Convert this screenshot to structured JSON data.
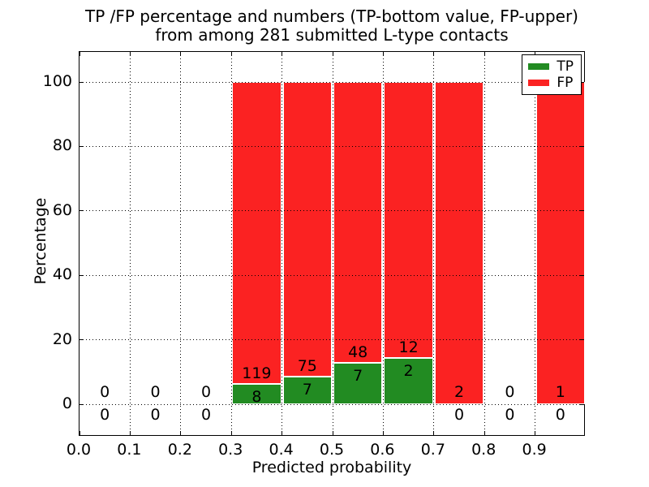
{
  "chart_data": {
    "type": "bar",
    "stacked": true,
    "normalized_total_pct": 100,
    "title_line1": "TP /FP percentage and numbers (TP-bottom value, FP-upper)",
    "title_line2": "from among 281 submitted L-type contacts",
    "xlabel": "Predicted probability",
    "ylabel": "Percentage",
    "x_ticks": [
      "0.0",
      "0.1",
      "0.2",
      "0.3",
      "0.4",
      "0.5",
      "0.6",
      "0.7",
      "0.8",
      "0.9"
    ],
    "y_ticks": [
      0,
      20,
      40,
      60,
      80,
      100
    ],
    "xlim": [
      0.0,
      1.0
    ],
    "ylim": [
      -10,
      110
    ],
    "bin_width": 0.1,
    "grid": "dotted",
    "legend_position": "upper-right",
    "legend": [
      {
        "label": "TP",
        "color": "#228b22"
      },
      {
        "label": "FP",
        "color": "#fb2222"
      }
    ],
    "total_contacts": 281,
    "bins": [
      {
        "x_start": 0.0,
        "tp": 0,
        "fp": 0
      },
      {
        "x_start": 0.1,
        "tp": 0,
        "fp": 0
      },
      {
        "x_start": 0.2,
        "tp": 0,
        "fp": 0
      },
      {
        "x_start": 0.3,
        "tp": 8,
        "fp": 119
      },
      {
        "x_start": 0.4,
        "tp": 7,
        "fp": 75
      },
      {
        "x_start": 0.5,
        "tp": 7,
        "fp": 48
      },
      {
        "x_start": 0.6,
        "tp": 2,
        "fp": 12
      },
      {
        "x_start": 0.7,
        "tp": 0,
        "fp": 2
      },
      {
        "x_start": 0.8,
        "tp": 0,
        "fp": 0
      },
      {
        "x_start": 0.9,
        "tp": 0,
        "fp": 1
      }
    ],
    "colors": {
      "tp": "#228b22",
      "fp": "#fb2222",
      "grid": "#000000",
      "text": "#000000"
    }
  }
}
